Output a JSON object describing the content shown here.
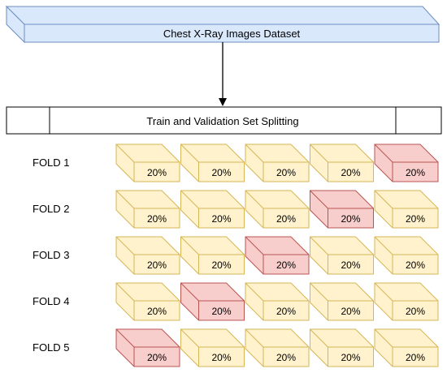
{
  "dataset": {
    "label": "Chest X-Ray Images Dataset"
  },
  "splitting": {
    "label": "Train and Validation Set Splitting"
  },
  "folds": [
    {
      "label": "FOLD 1",
      "validation_index": 4,
      "blocks": [
        "20%",
        "20%",
        "20%",
        "20%",
        "20%"
      ]
    },
    {
      "label": "FOLD 2",
      "validation_index": 3,
      "blocks": [
        "20%",
        "20%",
        "20%",
        "20%",
        "20%"
      ]
    },
    {
      "label": "FOLD 3",
      "validation_index": 2,
      "blocks": [
        "20%",
        "20%",
        "20%",
        "20%",
        "20%"
      ]
    },
    {
      "label": "FOLD 4",
      "validation_index": 1,
      "blocks": [
        "20%",
        "20%",
        "20%",
        "20%",
        "20%"
      ]
    },
    {
      "label": "FOLD 5",
      "validation_index": 0,
      "blocks": [
        "20%",
        "20%",
        "20%",
        "20%",
        "20%"
      ]
    }
  ],
  "colors": {
    "dataset_fill": "#dae8fc",
    "dataset_stroke": "#6c8ebf",
    "train_fill": "#fff2cc",
    "train_stroke": "#d6b656",
    "validation_fill": "#f8cecc",
    "validation_stroke": "#b85450"
  }
}
